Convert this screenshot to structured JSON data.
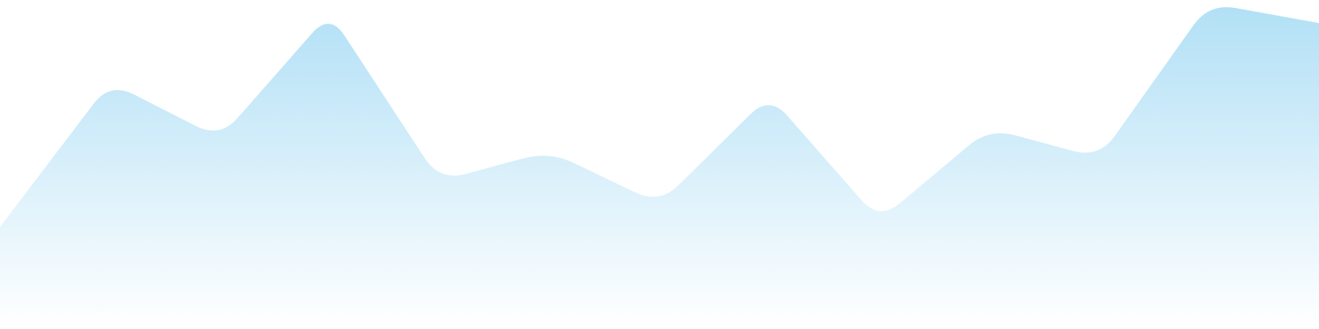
{
  "chart_data": {
    "type": "area",
    "x": [
      0,
      1,
      2,
      3,
      4,
      5,
      6,
      7,
      8,
      9,
      10,
      11,
      12
    ],
    "series": [
      {
        "values": [
          0.31,
          0.75,
          0.58,
          0.96,
          0.45,
          0.54,
          0.38,
          0.71,
          0.33,
          0.61,
          0.52,
          0.99,
          0.93
        ]
      }
    ],
    "ylim": [
      0,
      1
    ],
    "grid": false,
    "legend": "none",
    "colors": {
      "fill_top": "#b2e0f6",
      "fill_bottom": "#ffffff"
    }
  }
}
